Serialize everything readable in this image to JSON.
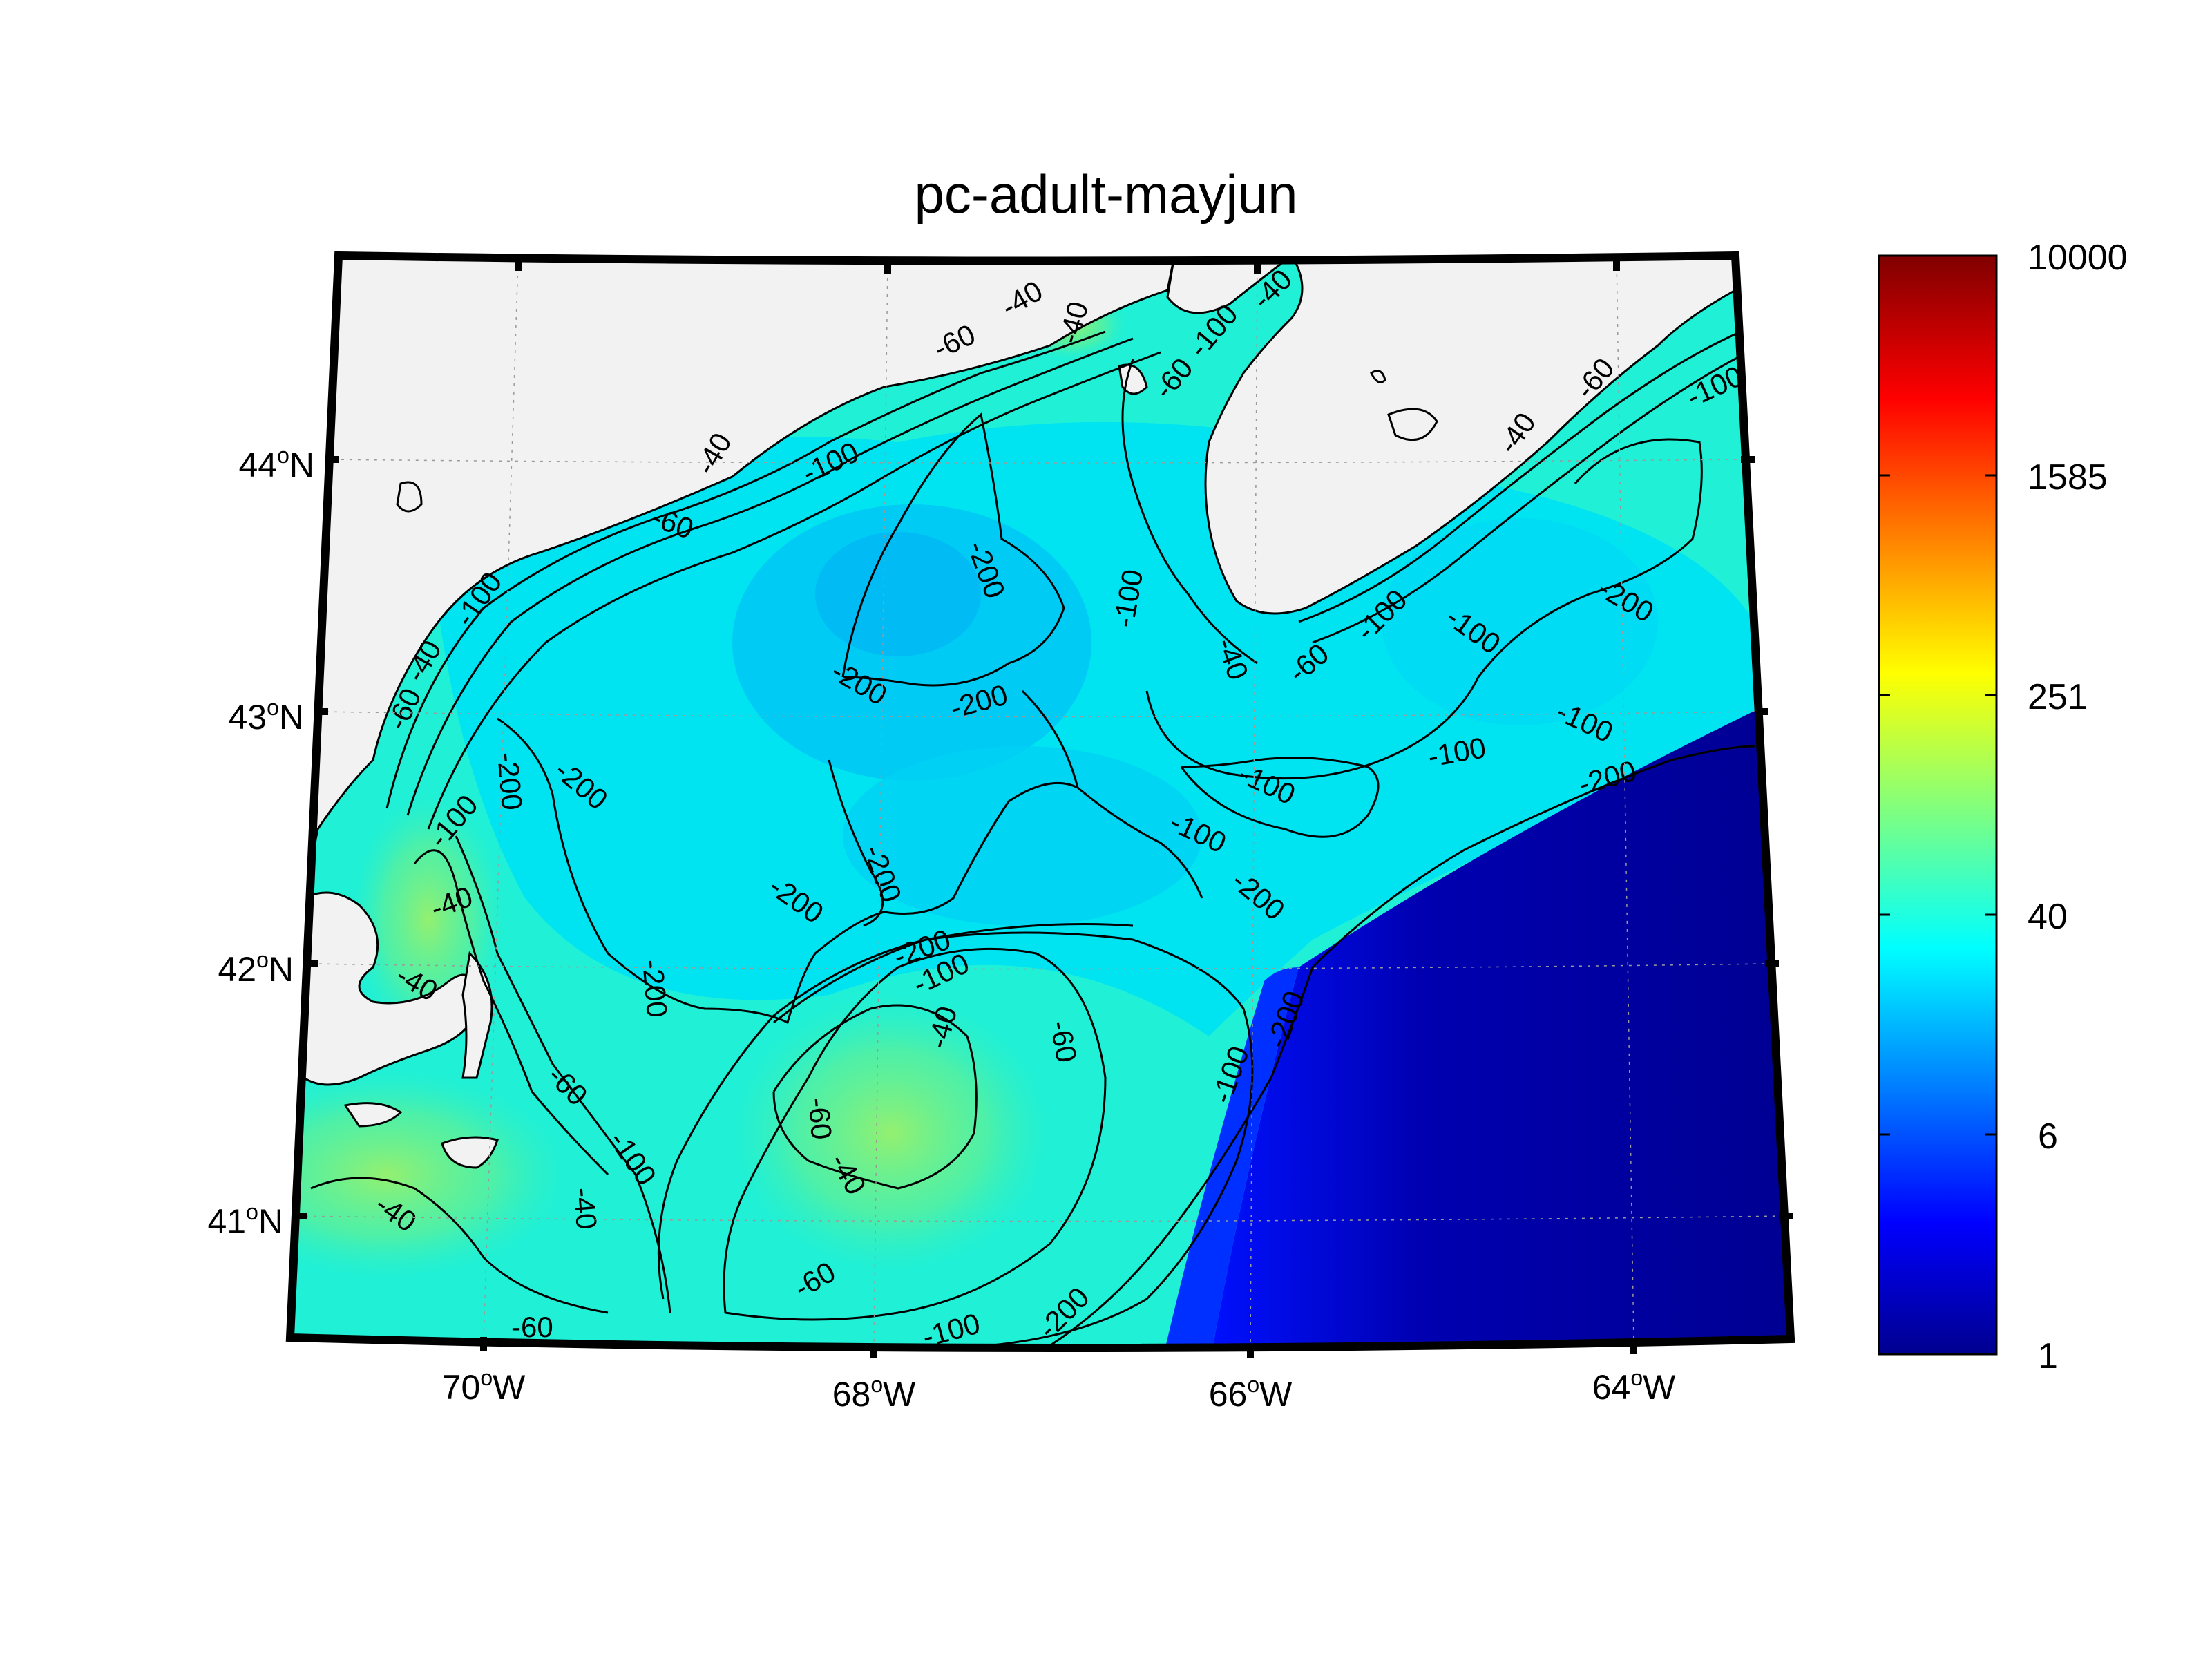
{
  "title": "pc-adult-mayjun",
  "lat_labels": [
    {
      "deg": "44",
      "hemi": "N"
    },
    {
      "deg": "43",
      "hemi": "N"
    },
    {
      "deg": "42",
      "hemi": "N"
    },
    {
      "deg": "41",
      "hemi": "N"
    }
  ],
  "lon_labels": [
    {
      "deg": "70",
      "hemi": "W"
    },
    {
      "deg": "68",
      "hemi": "W"
    },
    {
      "deg": "66",
      "hemi": "W"
    },
    {
      "deg": "64",
      "hemi": "W"
    }
  ],
  "colorbar": {
    "ticks": [
      "10000",
      "1585",
      "251",
      "40",
      "6",
      "1"
    ],
    "scale": "log",
    "range": [
      1,
      10000
    ],
    "colormap": "jet"
  },
  "contour_labels": [
    "-40",
    "-60",
    "-100",
    "-200"
  ],
  "colors": {
    "land": "#f2f2f2",
    "deep_water": "#00008f",
    "contour": "#000000",
    "frame": "#000000"
  }
}
